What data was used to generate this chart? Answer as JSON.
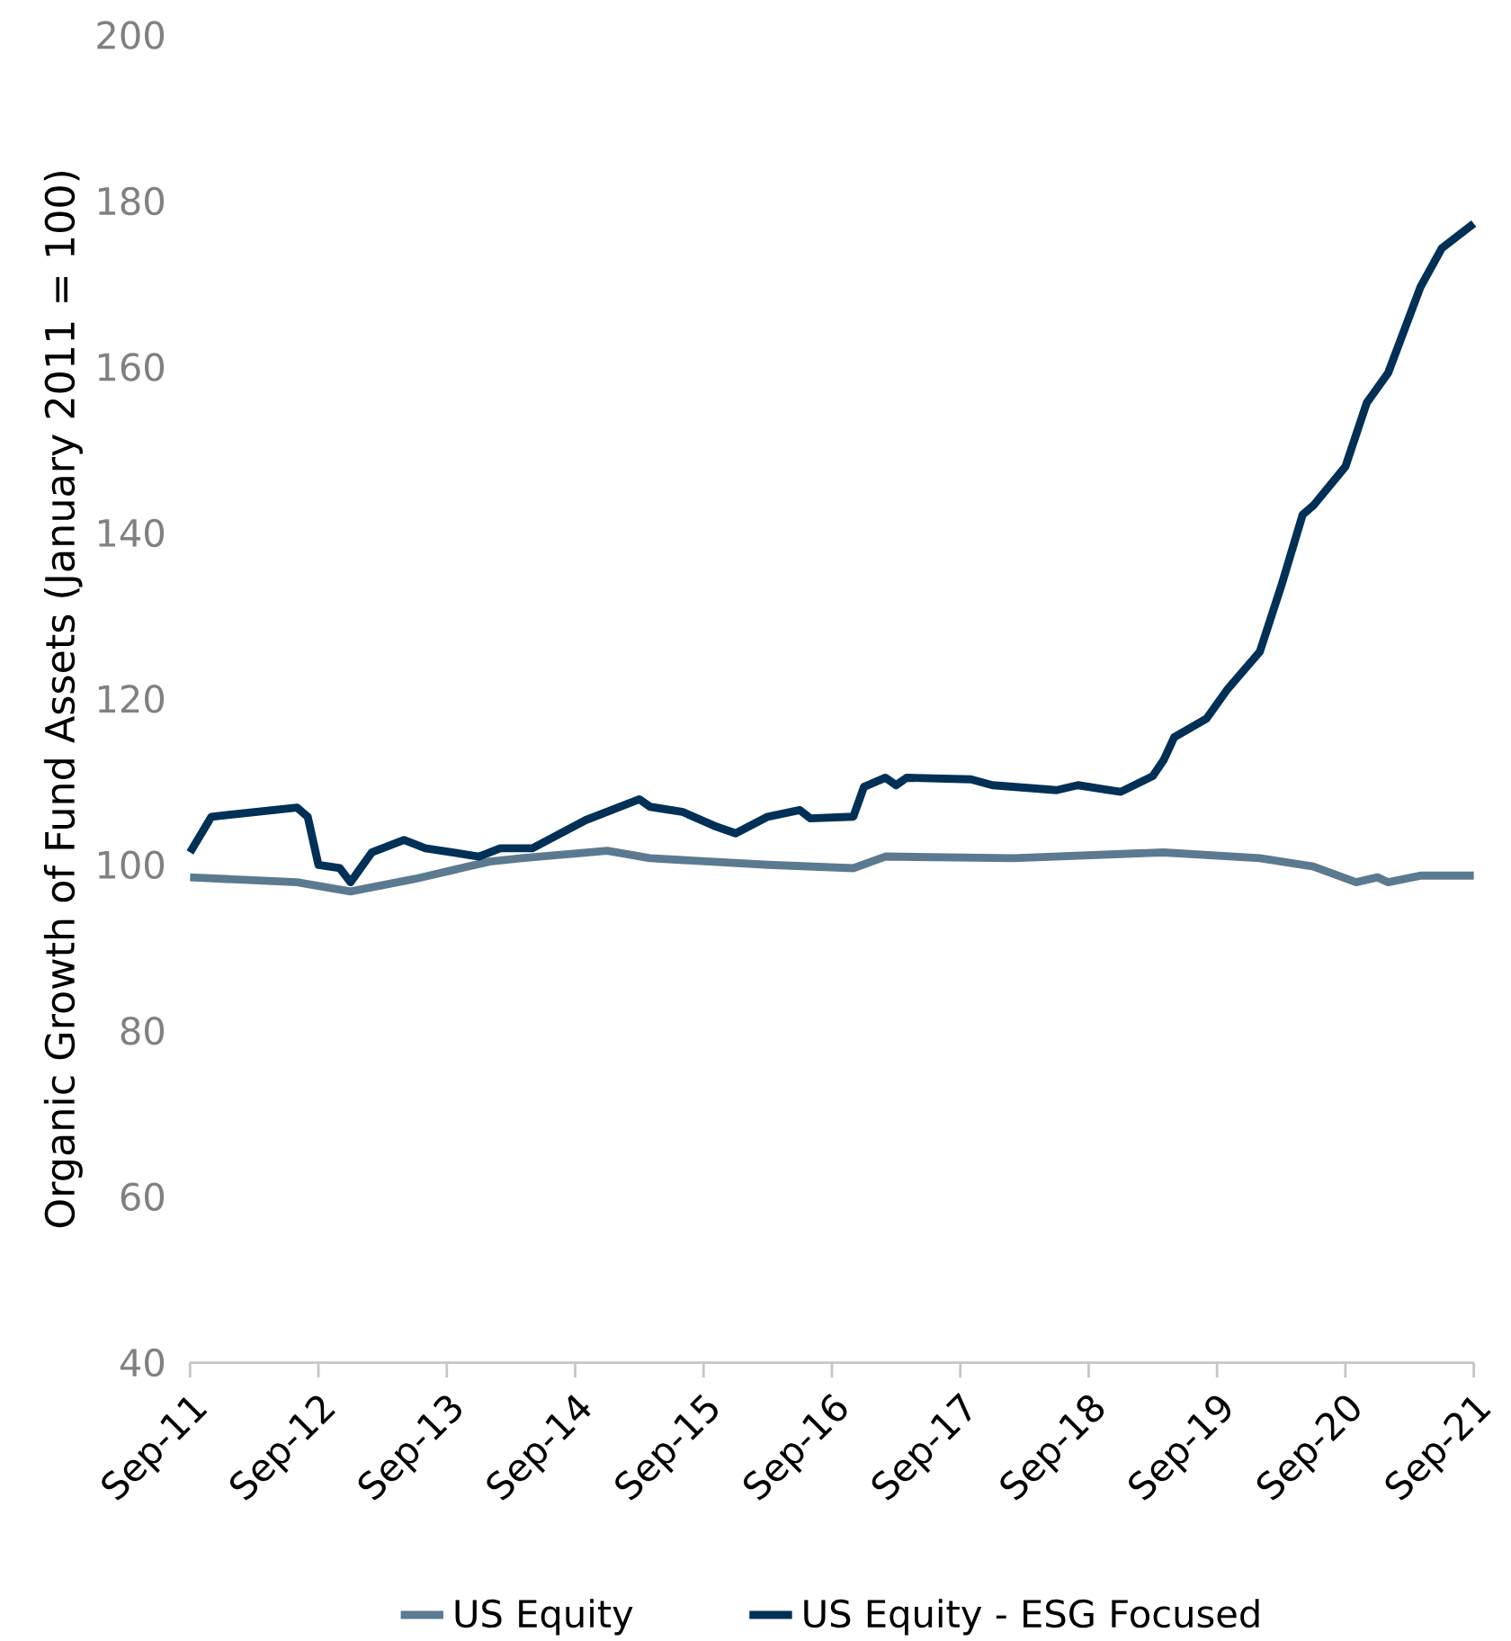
{
  "chart_data": {
    "type": "line",
    "ylabel": "Organic Growth of Fund Assets (January 2011 = 100)",
    "xlim": [
      "2011-09",
      "2021-09"
    ],
    "ylim": [
      40,
      200
    ],
    "yticks": [
      40,
      60,
      80,
      100,
      120,
      140,
      160,
      180,
      200
    ],
    "xticks": [
      {
        "value": "2011-09",
        "label": "Sep-11"
      },
      {
        "value": "2012-09",
        "label": "Sep-12"
      },
      {
        "value": "2013-09",
        "label": "Sep-13"
      },
      {
        "value": "2014-09",
        "label": "Sep-14"
      },
      {
        "value": "2015-09",
        "label": "Sep-15"
      },
      {
        "value": "2016-09",
        "label": "Sep-16"
      },
      {
        "value": "2017-09",
        "label": "Sep-17"
      },
      {
        "value": "2018-09",
        "label": "Sep-18"
      },
      {
        "value": "2019-09",
        "label": "Sep-19"
      },
      {
        "value": "2020-09",
        "label": "Sep-20"
      },
      {
        "value": "2021-09",
        "label": "Sep-21"
      }
    ],
    "grid": false,
    "legend": "bottom",
    "marker": "none",
    "line_style": "solid",
    "series": [
      {
        "name": "US Equity",
        "color": "#5b7a8f",
        "x": [
          "2011-09",
          "2012-07",
          "2012-12",
          "2013-06",
          "2014-01",
          "2014-04",
          "2014-12",
          "2015-04",
          "2016-03",
          "2016-11",
          "2017-02",
          "2018-02",
          "2019-04",
          "2020-01",
          "2020-06",
          "2020-10",
          "2020-12",
          "2021-01",
          "2021-04",
          "2021-09"
        ],
        "values": [
          98.5,
          97.9,
          96.8,
          98.3,
          100.4,
          100.8,
          101.7,
          100.8,
          100,
          99.6,
          101,
          100.8,
          101.5,
          100.8,
          99.8,
          97.9,
          98.5,
          97.9,
          98.7,
          98.7
        ]
      },
      {
        "name": "US Equity - ESG Focused",
        "color": "#013057",
        "x": [
          "2011-09",
          "2011-11",
          "2012-07",
          "2012-08",
          "2012-09",
          "2012-11",
          "2012-12",
          "2013-02",
          "2013-05",
          "2013-07",
          "2013-12",
          "2014-02",
          "2014-05",
          "2014-10",
          "2015-03",
          "2015-04",
          "2015-07",
          "2015-10",
          "2015-12",
          "2016-03",
          "2016-06",
          "2016-07",
          "2016-11",
          "2016-12",
          "2017-02",
          "2017-03",
          "2017-04",
          "2017-10",
          "2017-12",
          "2018-06",
          "2018-08",
          "2018-11",
          "2018-12",
          "2019-03",
          "2019-04",
          "2019-05",
          "2019-08",
          "2019-10",
          "2020-01",
          "2020-03",
          "2020-05",
          "2020-06",
          "2020-09",
          "2020-11",
          "2021-01",
          "2021-04",
          "2021-06",
          "2021-09"
        ],
        "values": [
          101.5,
          105.8,
          106.9,
          105.8,
          100,
          99.6,
          97.9,
          101.5,
          103,
          102,
          101,
          102,
          102,
          105.4,
          107.9,
          107,
          106.4,
          104.7,
          103.8,
          105.8,
          106.6,
          105.6,
          105.8,
          109.4,
          110.5,
          109.6,
          110.5,
          110.3,
          109.6,
          109,
          109.6,
          109,
          108.8,
          110.7,
          112.6,
          115.4,
          117.6,
          121.2,
          125.7,
          133.6,
          142.2,
          143.3,
          148,
          155.7,
          159.3,
          169.6,
          174.3,
          177.3
        ]
      }
    ]
  }
}
